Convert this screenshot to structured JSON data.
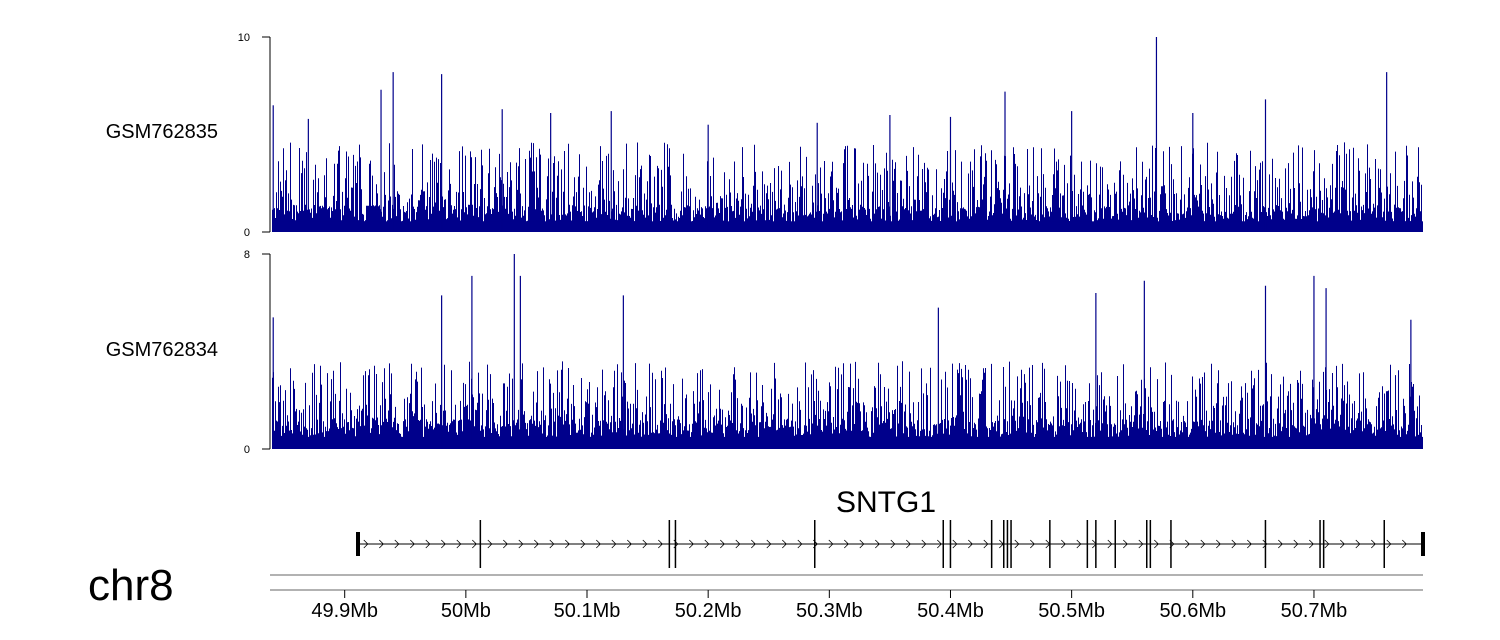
{
  "chart_data": {
    "type": "bar",
    "chromosome": "chr8",
    "x_range_mb": [
      49.84,
      50.79
    ],
    "x_tick_labels": [
      "49.9Mb",
      "50Mb",
      "50.1Mb",
      "50.2Mb",
      "50.3Mb",
      "50.4Mb",
      "50.5Mb",
      "50.6Mb",
      "50.7Mb"
    ],
    "x_tick_values_mb": [
      49.9,
      50.0,
      50.1,
      50.2,
      50.3,
      50.4,
      50.5,
      50.6,
      50.7
    ],
    "color": "#00008b",
    "series": [
      {
        "name": "GSM762835",
        "ylim": [
          0,
          10
        ],
        "y_tick_labels": [
          "0",
          "10"
        ],
        "peaks": [
          {
            "x": 49.841,
            "y": 6.5
          },
          {
            "x": 49.87,
            "y": 5.8
          },
          {
            "x": 49.93,
            "y": 7.3
          },
          {
            "x": 49.94,
            "y": 8.2
          },
          {
            "x": 49.98,
            "y": 8.1
          },
          {
            "x": 50.03,
            "y": 6.3
          },
          {
            "x": 50.07,
            "y": 6.1
          },
          {
            "x": 50.12,
            "y": 6.2
          },
          {
            "x": 50.2,
            "y": 5.5
          },
          {
            "x": 50.29,
            "y": 5.6
          },
          {
            "x": 50.35,
            "y": 6.0
          },
          {
            "x": 50.4,
            "y": 5.9
          },
          {
            "x": 50.445,
            "y": 7.2
          },
          {
            "x": 50.5,
            "y": 6.2
          },
          {
            "x": 50.57,
            "y": 10.0
          },
          {
            "x": 50.6,
            "y": 6.1
          },
          {
            "x": 50.66,
            "y": 6.8
          },
          {
            "x": 50.76,
            "y": 8.2
          }
        ],
        "baseline_level": 1.0,
        "typical_max": 4.6
      },
      {
        "name": "GSM762834",
        "ylim": [
          0,
          8
        ],
        "y_tick_labels": [
          "0",
          "8"
        ],
        "peaks": [
          {
            "x": 49.841,
            "y": 5.4
          },
          {
            "x": 49.98,
            "y": 6.3
          },
          {
            "x": 50.005,
            "y": 7.1
          },
          {
            "x": 50.04,
            "y": 8.0
          },
          {
            "x": 50.045,
            "y": 7.1
          },
          {
            "x": 50.13,
            "y": 6.3
          },
          {
            "x": 50.39,
            "y": 5.8
          },
          {
            "x": 50.52,
            "y": 6.4
          },
          {
            "x": 50.56,
            "y": 6.9
          },
          {
            "x": 50.66,
            "y": 6.7
          },
          {
            "x": 50.7,
            "y": 7.1
          },
          {
            "x": 50.71,
            "y": 6.6
          },
          {
            "x": 50.78,
            "y": 5.3
          }
        ],
        "baseline_level": 0.9,
        "typical_max": 3.6
      }
    ],
    "gene": {
      "name": "SNTG1",
      "start_mb": 49.91,
      "end_mb": 50.79,
      "strand": "+",
      "exons_mb": [
        49.911,
        50.012,
        50.168,
        50.173,
        50.288,
        50.394,
        50.4,
        50.434,
        50.444,
        50.447,
        50.45,
        50.482,
        50.513,
        50.52,
        50.536,
        50.562,
        50.565,
        50.582,
        50.66,
        50.705,
        50.708,
        50.758,
        50.79
      ]
    }
  }
}
